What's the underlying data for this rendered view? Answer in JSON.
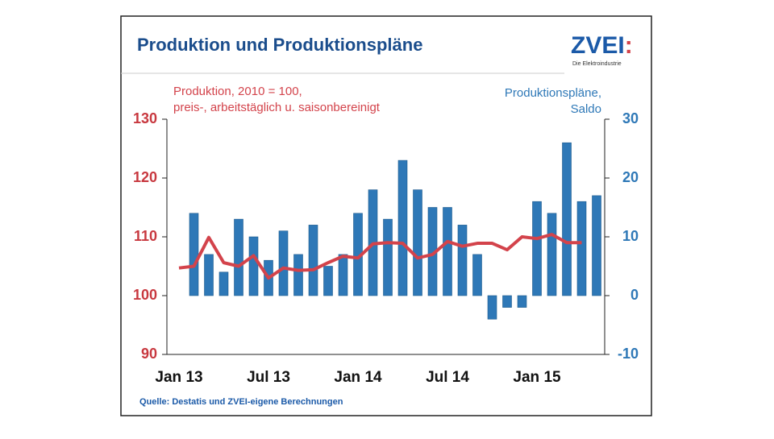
{
  "header": {
    "title": "Produktion und Produktionspläne",
    "logo": {
      "name": "ZVEI",
      "mark": ":",
      "tagline": "Die Elektroindustrie"
    }
  },
  "chart_data": {
    "type": "bar-line",
    "y_label": [
      "Produktion, 2010 = 100,",
      "preis-, arbeitstäglich u. saisonbereinigt"
    ],
    "y2_label": [
      "Produktionspläne,",
      "Saldo"
    ],
    "categories": [
      "Jan 13",
      null,
      null,
      null,
      null,
      null,
      "Jul 13",
      null,
      null,
      null,
      null,
      null,
      "Jan 14",
      null,
      null,
      null,
      null,
      null,
      "Jul 14",
      null,
      null,
      null,
      null,
      null,
      "Jan 15",
      null,
      null,
      null,
      null
    ],
    "ylim": [
      90,
      130
    ],
    "yticks": [
      90,
      100,
      110,
      120,
      130
    ],
    "y2lim": [
      -10,
      30
    ],
    "y2ticks": [
      -10,
      0,
      10,
      20,
      30
    ],
    "series": [
      {
        "type": "bar",
        "axis": "y2",
        "color": "#2e78b7",
        "values": [
          null,
          14,
          7,
          4,
          13,
          10,
          6,
          11,
          7,
          12,
          5,
          7,
          14,
          18,
          13,
          23,
          18,
          15,
          15,
          12,
          7,
          -4,
          -2,
          -2,
          16,
          14,
          26,
          16,
          17
        ]
      },
      {
        "type": "line",
        "axis": "y",
        "color": "#d3434b",
        "values": [
          104.7,
          105,
          109.9,
          105.6,
          105,
          106.8,
          103,
          104.7,
          104.3,
          104.4,
          105.6,
          106.7,
          106.4,
          108.8,
          109,
          108.9,
          106.4,
          107,
          109.2,
          108.4,
          108.9,
          108.9,
          107.8,
          110,
          109.7,
          110.4,
          109,
          109,
          null
        ]
      }
    ]
  },
  "footer": {
    "source": "Quelle: Destatis und ZVEI-eigene Berechnungen"
  }
}
